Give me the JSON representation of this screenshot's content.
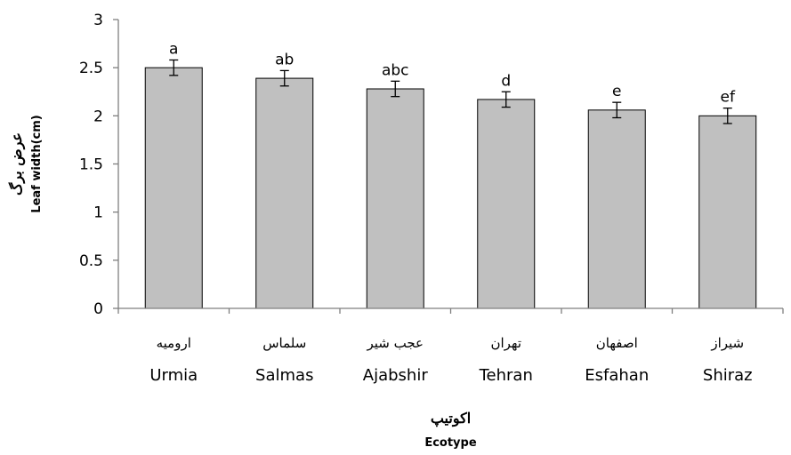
{
  "chart_data": {
    "type": "bar",
    "categories": [
      "Urmia",
      "Salmas",
      "Ajabshir",
      "Tehran",
      "Esfahan",
      "Shiraz"
    ],
    "categories_fa": [
      "ارومیه",
      "سلماس",
      "عجب شیر",
      "تهران",
      "اصفهان",
      "شیراز"
    ],
    "values": [
      2.5,
      2.39,
      2.28,
      2.17,
      2.06,
      2.0
    ],
    "errors": [
      0.08,
      0.08,
      0.08,
      0.08,
      0.08,
      0.08
    ],
    "significance_labels": [
      "a",
      "ab",
      "abc",
      "d",
      "e",
      "ef"
    ],
    "ylim": [
      0,
      3
    ],
    "yticks": [
      0,
      0.5,
      1,
      1.5,
      2,
      2.5,
      3
    ],
    "ytick_labels": [
      "0",
      "0.5",
      "1",
      "1.5",
      "2",
      "2.5",
      "3"
    ],
    "ylabel_fa": "عرض برگ",
    "ylabel_en": "Leaf width(cm)",
    "xlabel_fa": "اکوتیپ",
    "xlabel_en": "Ecotype",
    "bar_color": "#c0c0c0",
    "grid": false,
    "legend": "none"
  }
}
